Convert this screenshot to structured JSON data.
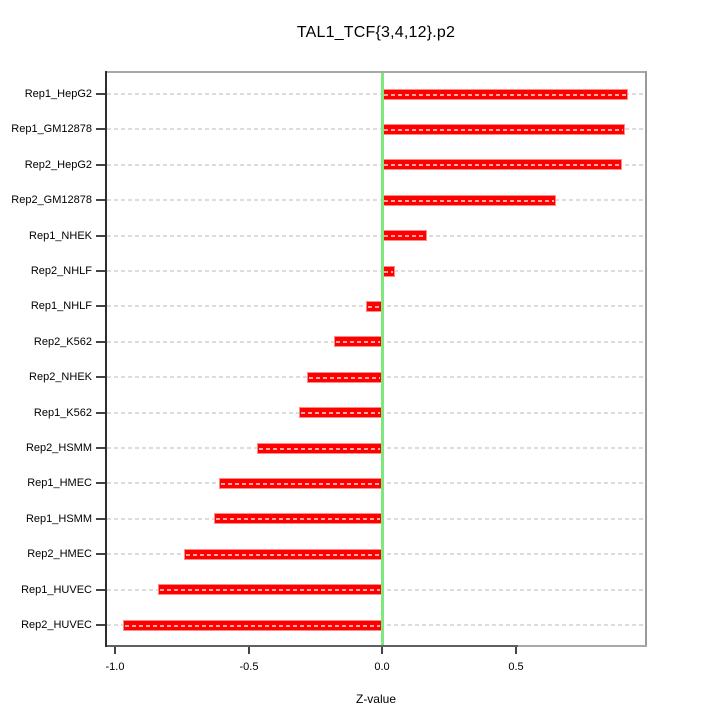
{
  "chart_data": {
    "type": "bar",
    "orientation": "horizontal",
    "title": "TAL1_TCF{3,4,12}.p2",
    "xlabel": "Z-value",
    "categories": [
      "Rep1_HepG2",
      "Rep1_GM12878",
      "Rep2_HepG2",
      "Rep2_GM12878",
      "Rep1_NHEK",
      "Rep2_NHLF",
      "Rep1_NHLF",
      "Rep2_K562",
      "Rep2_NHEK",
      "Rep1_K562",
      "Rep2_HSMM",
      "Rep1_HMEC",
      "Rep1_HSMM",
      "Rep2_HMEC",
      "Rep1_HUVEC",
      "Rep2_HUVEC"
    ],
    "values": [
      0.92,
      0.91,
      0.9,
      0.65,
      0.17,
      0.05,
      -0.06,
      -0.18,
      -0.28,
      -0.31,
      -0.47,
      -0.61,
      -0.63,
      -0.74,
      -0.84,
      -0.97
    ],
    "xticks": [
      -1.0,
      -0.5,
      0.0,
      0.5
    ],
    "xtick_labels": [
      "-1.0",
      "-0.5",
      "0.0",
      "0.5"
    ],
    "xlim": [
      -1.04,
      0.99
    ],
    "grid": true,
    "legend": null,
    "colors": {
      "bar": "#ff0000",
      "bar_edge": "#ff8a8a",
      "zero_line": "#7ee87e",
      "grid": "#dcdcdc",
      "box": "#a8a8a8",
      "axis": "#444444"
    }
  }
}
